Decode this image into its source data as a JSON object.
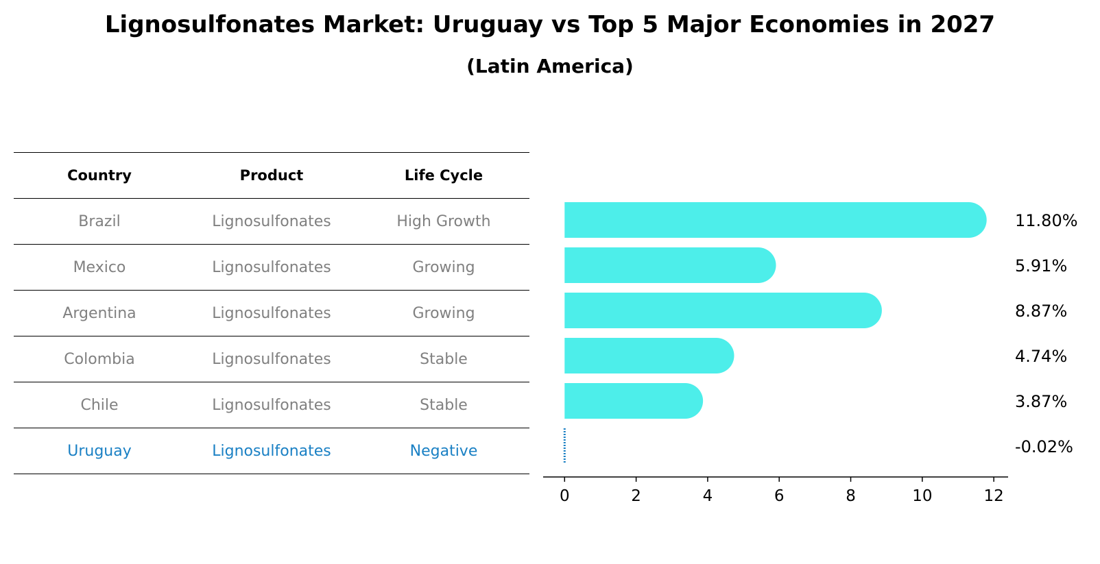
{
  "title": "Lignosulfonates Market: Uruguay vs Top 5 Major Economies in 2027",
  "subtitle": "(Latin America)",
  "table": {
    "headers": [
      "Country",
      "Product",
      "Life Cycle"
    ],
    "rows": [
      [
        "Brazil",
        "Lignosulfonates",
        "High Growth"
      ],
      [
        "Mexico",
        "Lignosulfonates",
        "Growing"
      ],
      [
        "Argentina",
        "Lignosulfonates",
        "Growing"
      ],
      [
        "Colombia",
        "Lignosulfonates",
        "Stable"
      ],
      [
        "Chile",
        "Lignosulfonates",
        "Stable"
      ],
      [
        "Uruguay",
        "Lignosulfonates",
        "Negative"
      ]
    ]
  },
  "chart_data": {
    "type": "bar",
    "orientation": "horizontal",
    "categories": [
      "Brazil",
      "Mexico",
      "Argentina",
      "Colombia",
      "Chile",
      "Uruguay"
    ],
    "values": [
      11.8,
      5.91,
      8.87,
      4.74,
      3.87,
      -0.02
    ],
    "value_labels": [
      "11.80%",
      "5.91%",
      "8.87%",
      "4.74%",
      "3.87%",
      "-0.02%"
    ],
    "xlim": [
      -0.6,
      12.4
    ],
    "xticks": [
      0,
      2,
      4,
      6,
      8,
      10,
      12
    ],
    "xlabel": "",
    "ylabel": "",
    "grid": false,
    "colors": {
      "bar": "#4DEEEA",
      "highlight": "#1a80c4"
    }
  }
}
